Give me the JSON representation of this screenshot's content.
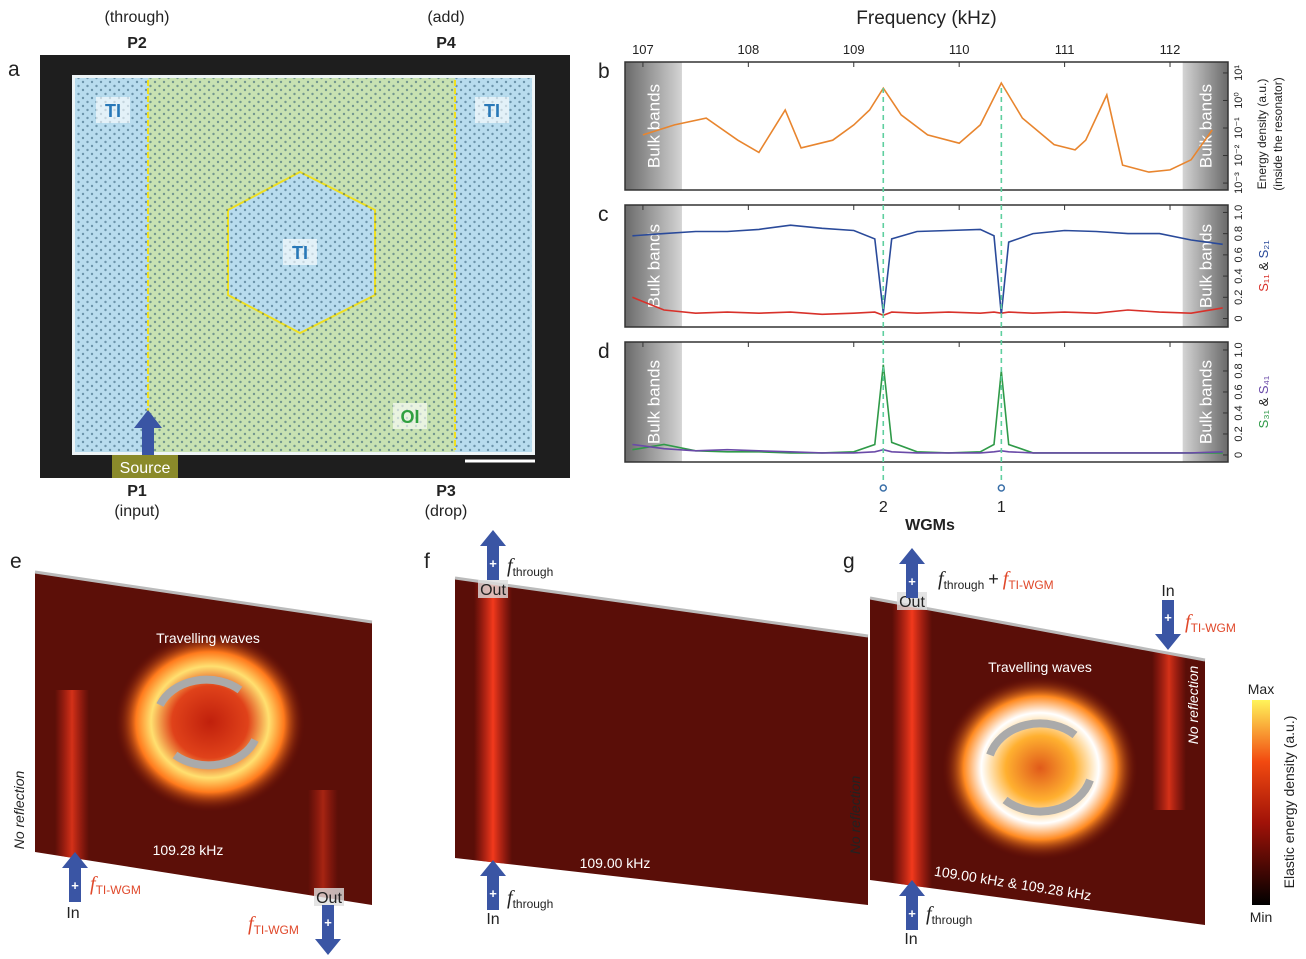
{
  "panel_a": {
    "label": "a",
    "ports": [
      {
        "name": "P2",
        "role": "(through)"
      },
      {
        "name": "P4",
        "role": "(add)"
      },
      {
        "name": "P1",
        "role": "(input)"
      },
      {
        "name": "P3",
        "role": "(drop)"
      }
    ],
    "regions": [
      "TI",
      "TI",
      "TI",
      "OI"
    ],
    "source": "Source"
  },
  "chart_data": [
    {
      "type": "line",
      "label": "b",
      "xlabel": "Frequency (kHz)",
      "xlim": [
        106.83,
        112.55
      ],
      "xticks": [
        107,
        108,
        109,
        110,
        111,
        112
      ],
      "log_y": true,
      "ylim": [
        0.00056,
        25
      ],
      "yticks": [
        {
          "value": 0.001,
          "label": "10⁻³"
        },
        {
          "value": 0.01,
          "label": "10⁻²"
        },
        {
          "value": 0.1,
          "label": "10⁻¹"
        },
        {
          "value": 1,
          "label": "10⁰"
        },
        {
          "value": 10,
          "label": "10¹"
        }
      ],
      "ylabel": [
        "Energy density (a.u.)",
        "(inside the resonator)"
      ],
      "bulk_bands": {
        "label": "Bulk bands",
        "ranges": [
          [
            106.83,
            107.37
          ],
          [
            112.12,
            112.55
          ]
        ]
      },
      "x": [
        107.0,
        107.3,
        107.6,
        107.9,
        108.1,
        108.35,
        108.5,
        108.8,
        109.0,
        109.15,
        109.28,
        109.45,
        109.7,
        110.0,
        110.2,
        110.4,
        110.6,
        110.9,
        111.1,
        111.2,
        111.4,
        111.55,
        111.8,
        112.0,
        112.2,
        112.4
      ],
      "series": [
        {
          "color": "#e8852e",
          "values": [
            0.056,
            0.13,
            0.23,
            0.036,
            0.013,
            0.45,
            0.019,
            0.036,
            0.13,
            0.45,
            2.8,
            0.3,
            0.056,
            0.028,
            0.13,
            4.3,
            0.23,
            0.025,
            0.016,
            0.036,
            1.6,
            0.0045,
            0.0025,
            0.003,
            0.007,
            0.085
          ]
        }
      ]
    },
    {
      "type": "line",
      "label": "c",
      "xlim": [
        106.83,
        112.55
      ],
      "xticks": [
        107,
        108,
        109,
        110,
        111,
        112
      ],
      "ylim": [
        -0.08,
        1.07
      ],
      "yticks": [
        0,
        0.2,
        0.4,
        0.6,
        0.8,
        {
          "value": 1,
          "label": "1.0"
        }
      ],
      "ylabel_joiner": " & ",
      "bulk_bands": {
        "label": "Bulk bands",
        "ranges": [
          [
            106.83,
            107.37
          ],
          [
            112.12,
            112.55
          ]
        ]
      },
      "x": [
        106.9,
        107.2,
        107.5,
        107.8,
        108.1,
        108.4,
        108.7,
        109.0,
        109.2,
        109.28,
        109.36,
        109.6,
        109.9,
        110.2,
        110.33,
        110.4,
        110.47,
        110.7,
        111.0,
        111.3,
        111.6,
        111.9,
        112.2,
        112.5
      ],
      "series": [
        {
          "name": "S₁₁",
          "color": "#d8312a",
          "values": [
            0.2,
            0.08,
            0.05,
            0.06,
            0.05,
            0.06,
            0.04,
            0.05,
            0.06,
            0.03,
            0.06,
            0.05,
            0.06,
            0.05,
            0.06,
            0.05,
            0.06,
            0.05,
            0.06,
            0.05,
            0.08,
            0.06,
            0.05,
            0.1
          ]
        },
        {
          "name": "S₂₁",
          "color": "#2a4a9a",
          "values": [
            0.78,
            0.8,
            0.82,
            0.82,
            0.84,
            0.88,
            0.85,
            0.83,
            0.75,
            0.05,
            0.75,
            0.82,
            0.83,
            0.84,
            0.78,
            0.04,
            0.72,
            0.8,
            0.83,
            0.82,
            0.8,
            0.8,
            0.74,
            0.7
          ]
        }
      ]
    },
    {
      "type": "line",
      "label": "d",
      "xlim": [
        106.83,
        112.55
      ],
      "xticks": [
        107,
        108,
        109,
        110,
        111,
        112
      ],
      "ylim": [
        -0.067,
        1.076
      ],
      "yticks": [
        0,
        0.2,
        0.4,
        0.6,
        0.8,
        {
          "value": 1,
          "label": "1.0"
        }
      ],
      "ylabel_joiner": " & ",
      "bulk_bands": {
        "label": "Bulk bands",
        "ranges": [
          [
            106.83,
            107.37
          ],
          [
            112.12,
            112.55
          ]
        ]
      },
      "x": [
        106.9,
        107.2,
        107.5,
        107.8,
        108.1,
        108.4,
        108.7,
        109.0,
        109.2,
        109.28,
        109.36,
        109.6,
        109.9,
        110.2,
        110.33,
        110.4,
        110.47,
        110.7,
        111.0,
        111.3,
        111.6,
        111.9,
        112.2,
        112.5
      ],
      "series": [
        {
          "name": "S₃₁",
          "color": "#2f9a48",
          "values": [
            0.05,
            0.1,
            0.04,
            0.03,
            0.03,
            0.02,
            0.02,
            0.03,
            0.1,
            0.86,
            0.12,
            0.03,
            0.02,
            0.03,
            0.1,
            0.8,
            0.1,
            0.02,
            0.02,
            0.02,
            0.02,
            0.02,
            0.02,
            0.02
          ]
        },
        {
          "name": "S₄₁",
          "color": "#6a4aa8",
          "values": [
            0.1,
            0.06,
            0.04,
            0.05,
            0.04,
            0.03,
            0.02,
            0.02,
            0.03,
            0.05,
            0.03,
            0.02,
            0.02,
            0.02,
            0.03,
            0.04,
            0.03,
            0.02,
            0.02,
            0.02,
            0.02,
            0.02,
            0.02,
            0.03
          ]
        }
      ]
    }
  ],
  "wgms": {
    "title": "WGMs",
    "modes": [
      {
        "label": "2",
        "x": 109.28
      },
      {
        "label": "1",
        "x": 110.4
      }
    ]
  },
  "symbols": {
    "f_through": {
      "symbol": "f",
      "sub": "through"
    },
    "f_wgm": {
      "symbol": "f",
      "sub": "TI-WGM"
    },
    "plus": "+",
    "arrow_sign": "+"
  },
  "panel_e": {
    "label": "e",
    "caption": "Travelling waves",
    "frequency": "109.28 kHz",
    "no_reflection": "No reflection",
    "in": "In",
    "out": "Out"
  },
  "panel_f": {
    "label": "f",
    "frequency": "109.00 kHz",
    "in": "In",
    "out": "Out"
  },
  "panel_g": {
    "label": "g",
    "caption": "Travelling waves",
    "frequency": "109.00 kHz & 109.28 kHz",
    "no_reflection": "No reflection",
    "in": "In",
    "out": "Out"
  },
  "colorbar": {
    "max": "Max",
    "min": "Min",
    "label": "Elastic energy density (a.u.)"
  }
}
